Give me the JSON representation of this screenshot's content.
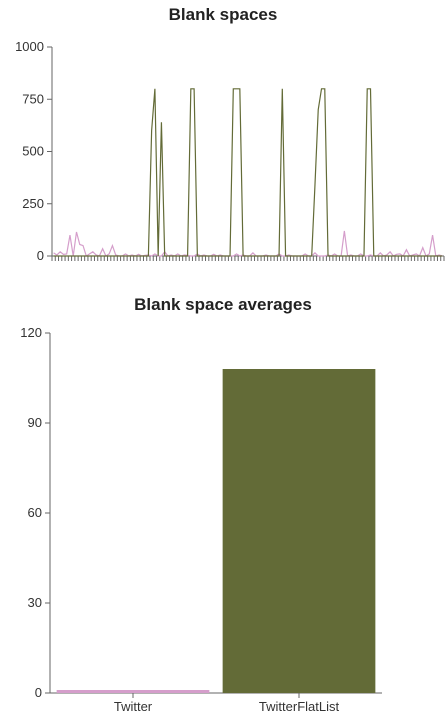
{
  "charts": {
    "line": {
      "title": "Blank spaces",
      "y_ticks": [
        "0",
        "250",
        "500",
        "750",
        "1000"
      ]
    },
    "bar": {
      "title": "Blank space averages",
      "y_ticks": [
        "0",
        "30",
        "60",
        "90",
        "120"
      ],
      "categories": [
        "Twitter",
        "TwitterFlatList"
      ]
    }
  },
  "colors": {
    "twitter": "#d59ecb",
    "twitter_flatlist": "#636b37",
    "axis": "#666666"
  },
  "chart_data": [
    {
      "type": "line",
      "title": "Blank spaces",
      "xlabel": "",
      "ylabel": "",
      "ylim": [
        0,
        1000
      ],
      "y_ticks": [
        0,
        250,
        500,
        750,
        1000
      ],
      "x_tick_labels": "none",
      "grid": false,
      "x_count": 120,
      "series": [
        {
          "color": "#d59ecb",
          "values": [
            15,
            5,
            20,
            8,
            10,
            100,
            0,
            115,
            55,
            50,
            0,
            10,
            20,
            5,
            0,
            35,
            0,
            10,
            50,
            5,
            0,
            0,
            10,
            0,
            5,
            0,
            8,
            0,
            3,
            5,
            0,
            10,
            0,
            0,
            20,
            0,
            5,
            0,
            10,
            0,
            5,
            3,
            0,
            0,
            10,
            0,
            5,
            0,
            0,
            8,
            0,
            5,
            0,
            0,
            0,
            0,
            10,
            0,
            5,
            0,
            0,
            15,
            0,
            0,
            0,
            5,
            0,
            0,
            0,
            10,
            0,
            0,
            5,
            0,
            0,
            0,
            0,
            10,
            0,
            0,
            15,
            0,
            0,
            0,
            5,
            0,
            10,
            0,
            0,
            120,
            0,
            5,
            0,
            0,
            10,
            0,
            0,
            5,
            0,
            0,
            15,
            0,
            5,
            20,
            0,
            8,
            10,
            0,
            30,
            0,
            5,
            10,
            0,
            40,
            0,
            10,
            100,
            0,
            5,
            0
          ]
        },
        {
          "color": "#636b37",
          "values": [
            0,
            0,
            0,
            0,
            0,
            0,
            0,
            0,
            0,
            0,
            0,
            0,
            0,
            0,
            0,
            0,
            0,
            0,
            0,
            0,
            0,
            0,
            0,
            0,
            0,
            0,
            0,
            0,
            0,
            0,
            600,
            800,
            0,
            640,
            0,
            0,
            0,
            0,
            0,
            0,
            0,
            0,
            800,
            800,
            0,
            0,
            0,
            0,
            0,
            0,
            0,
            0,
            0,
            0,
            0,
            800,
            800,
            800,
            0,
            0,
            0,
            0,
            0,
            0,
            0,
            0,
            0,
            0,
            0,
            0,
            800,
            0,
            0,
            0,
            0,
            0,
            0,
            0,
            0,
            0,
            340,
            700,
            800,
            800,
            0,
            0,
            0,
            0,
            0,
            0,
            0,
            0,
            0,
            0,
            0,
            0,
            800,
            800,
            0,
            0,
            0,
            0,
            0,
            0,
            0,
            0,
            0,
            0,
            0,
            0,
            0,
            0,
            0,
            0,
            0,
            0,
            0,
            0,
            0,
            0
          ]
        }
      ]
    },
    {
      "type": "bar",
      "title": "Blank space averages",
      "categories": [
        "Twitter",
        "TwitterFlatList"
      ],
      "values": [
        1,
        108
      ],
      "colors": [
        "#d59ecb",
        "#636b37"
      ],
      "ylim": [
        0,
        120
      ],
      "y_ticks": [
        0,
        30,
        60,
        90,
        120
      ],
      "grid": false,
      "xlabel": "",
      "ylabel": ""
    }
  ]
}
